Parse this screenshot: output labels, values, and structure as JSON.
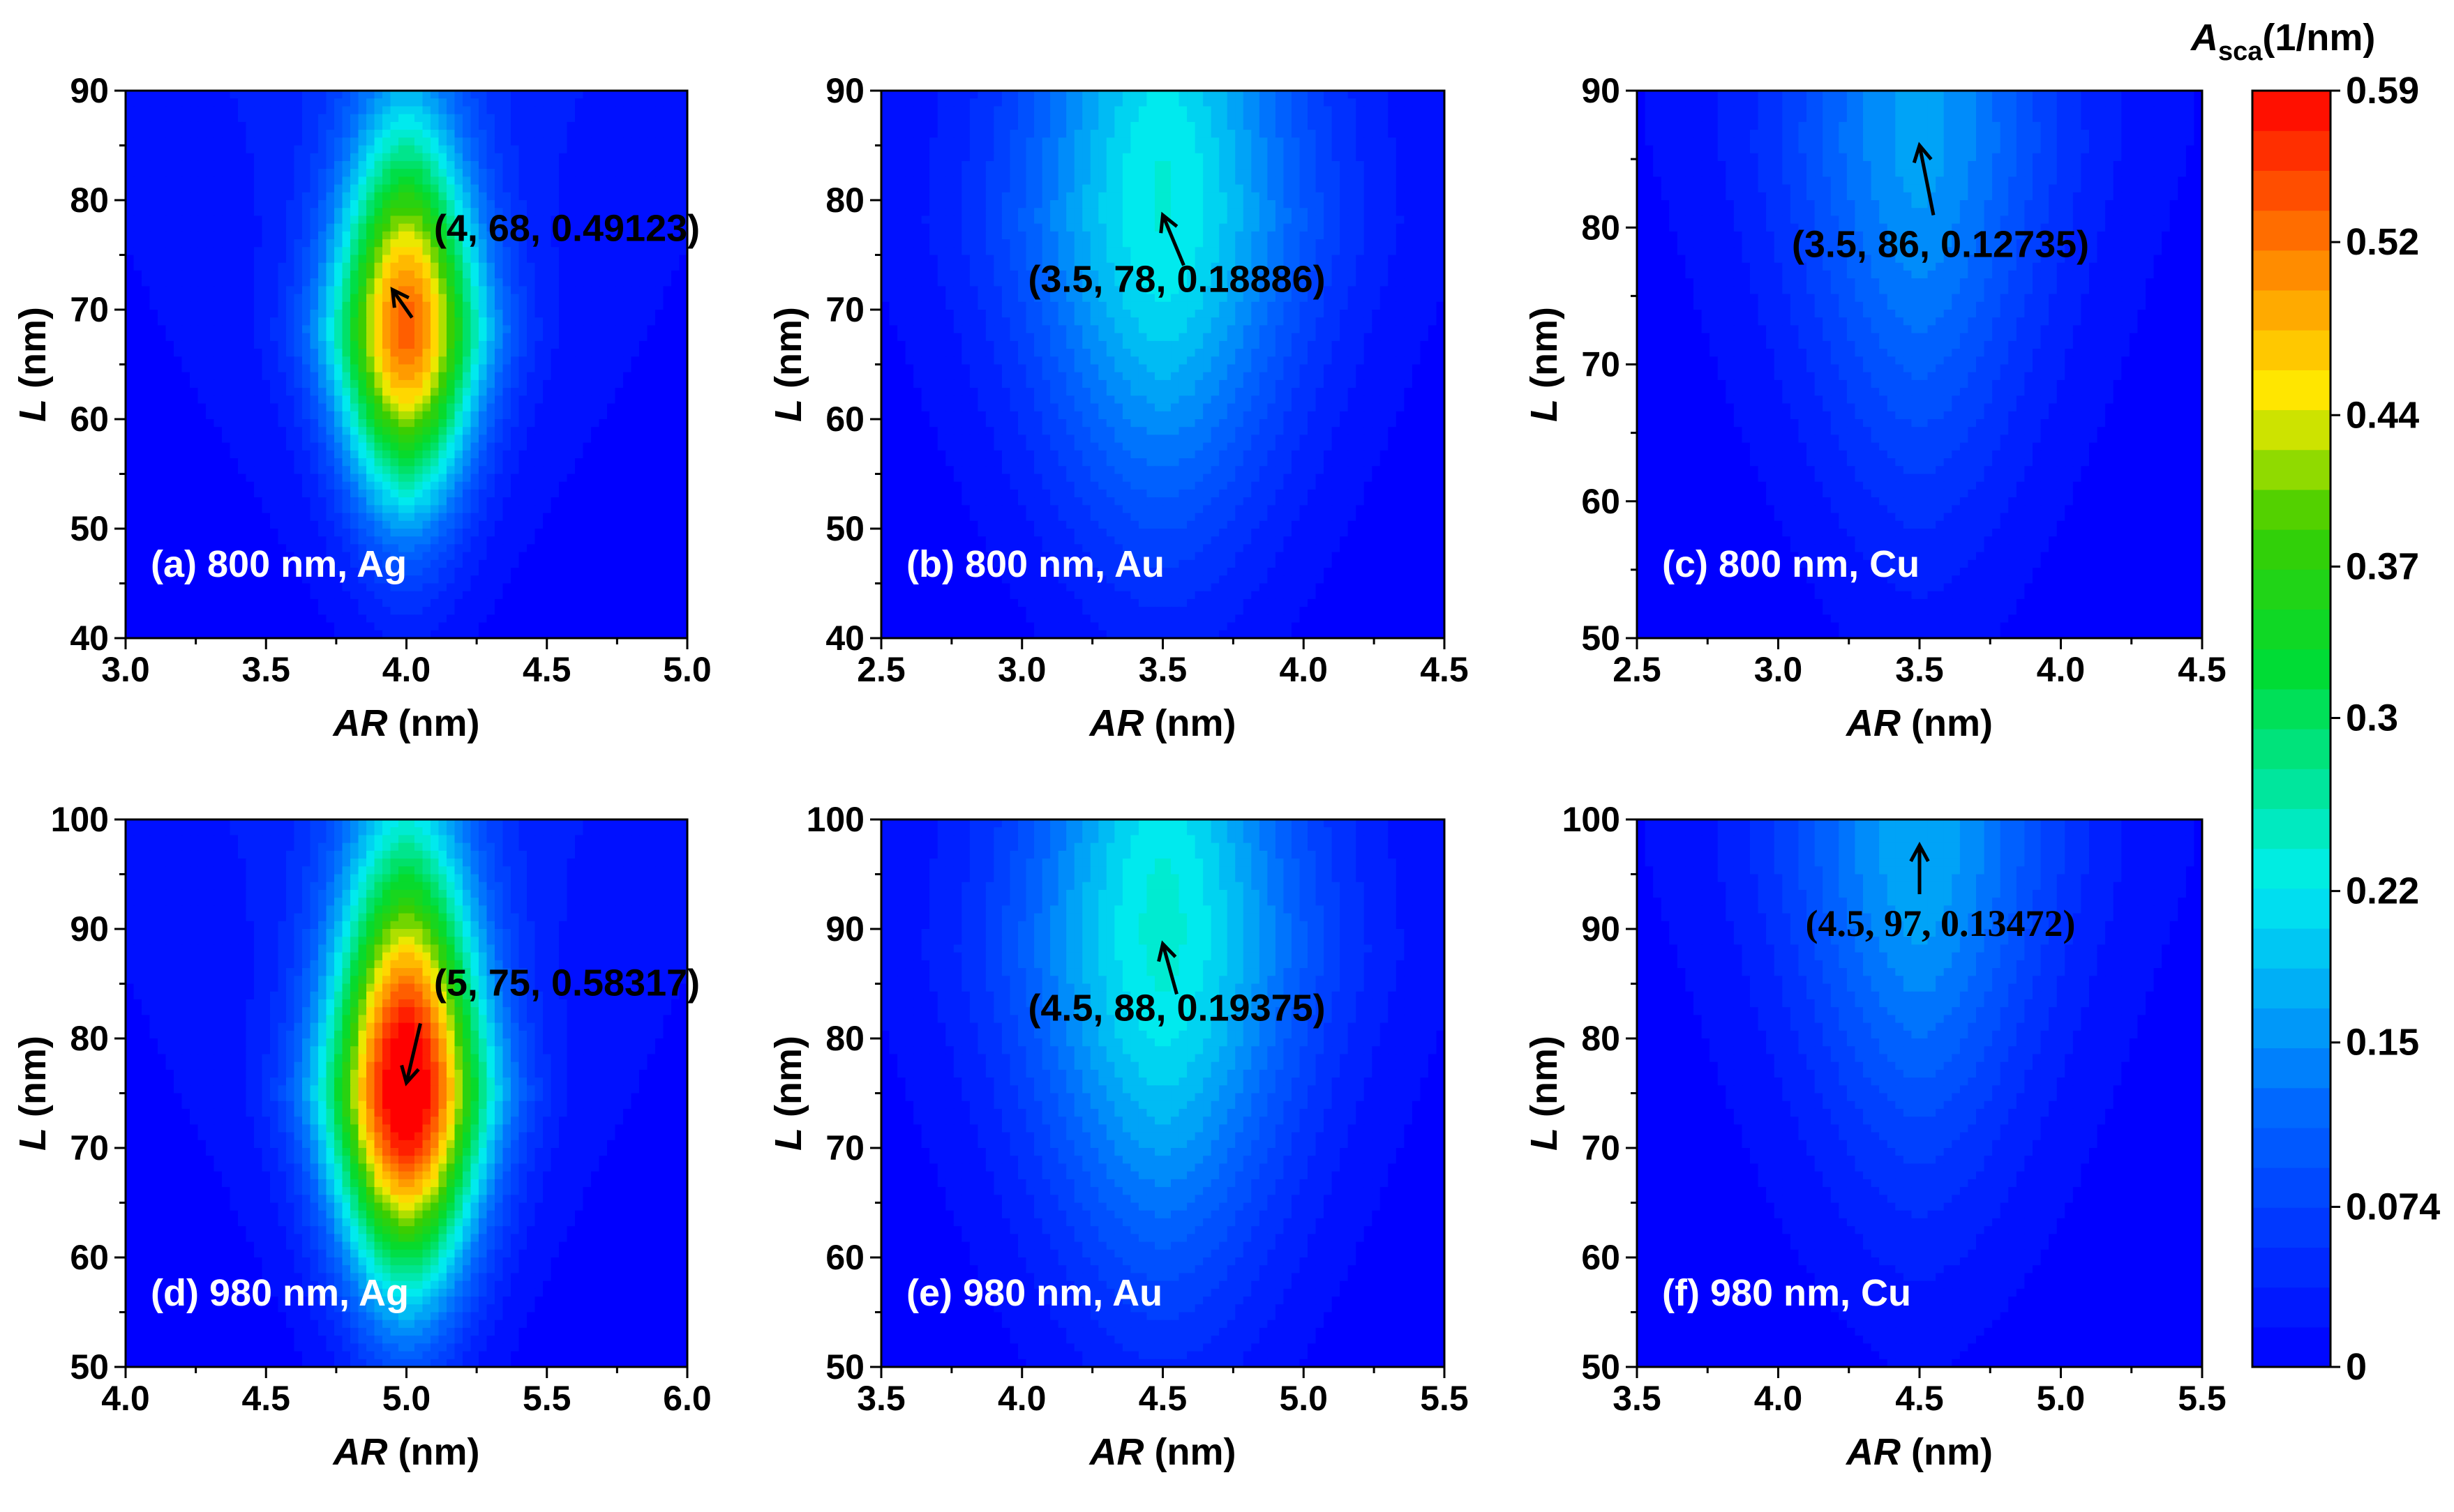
{
  "figure": {
    "colorbar": {
      "title_main": "A",
      "title_sub": "sca",
      "title_unit": "(1/nm)",
      "ticks": [
        "0.59",
        "0.52",
        "0.44",
        "0.37",
        "0.3",
        "0.22",
        "0.15",
        "0.074",
        "0"
      ],
      "tick_values": [
        0.59,
        0.52,
        0.44,
        0.37,
        0.3,
        0.22,
        0.15,
        0.074,
        0
      ],
      "range": [
        0,
        0.59
      ],
      "levels": 32
    }
  },
  "chart_data": [
    {
      "type": "heatmap",
      "panel_label": "(a) 800  nm, Ag",
      "xlabel_italic": "AR",
      "xlabel_unit": " (nm)",
      "ylabel_italic": "L",
      "ylabel_unit": " (nm)",
      "xlim": [
        3.0,
        5.0
      ],
      "ylim": [
        40,
        90
      ],
      "xticks": [
        3.0,
        3.5,
        4.0,
        4.5,
        5.0
      ],
      "xtick_labels": [
        "3.0",
        "3.5",
        "4.0",
        "4.5",
        "5.0"
      ],
      "yticks": [
        40,
        50,
        60,
        70,
        80,
        90
      ],
      "ytick_labels": [
        "40",
        "50",
        "60",
        "70",
        "80",
        "90"
      ],
      "peak": {
        "x": 4,
        "y": 68,
        "z": 0.49123
      },
      "annotation": "(4, 68, 0.49123)",
      "width_x": 0.28,
      "spread_up": 18,
      "spread_down": 16,
      "background": 0.06
    },
    {
      "type": "heatmap",
      "panel_label": "(b) 800 nm, Au",
      "xlabel_italic": "AR",
      "xlabel_unit": " (nm)",
      "ylabel_italic": "L",
      "ylabel_unit": " (nm)",
      "xlim": [
        2.5,
        4.5
      ],
      "ylim": [
        40,
        90
      ],
      "xticks": [
        2.5,
        3.0,
        3.5,
        4.0,
        4.5
      ],
      "xtick_labels": [
        "2.5",
        "3.0",
        "3.5",
        "4.0",
        "4.5"
      ],
      "yticks": [
        40,
        50,
        60,
        70,
        80,
        90
      ],
      "ytick_labels": [
        "40",
        "50",
        "60",
        "70",
        "80",
        "90"
      ],
      "peak": {
        "x": 3.5,
        "y": 78,
        "z": 0.18886
      },
      "annotation": "(3.5, 78, 0.18886)",
      "width_x": 0.55,
      "spread_up": 30,
      "spread_down": 28,
      "background": 0.05
    },
    {
      "type": "heatmap",
      "panel_label": "(c) 800 nm, Cu",
      "xlabel_italic": "AR",
      "xlabel_unit": " (nm)",
      "ylabel_italic": "L",
      "ylabel_unit": " (nm)",
      "xlim": [
        2.5,
        4.5
      ],
      "ylim": [
        50,
        90
      ],
      "xticks": [
        2.5,
        3.0,
        3.5,
        4.0,
        4.5
      ],
      "xtick_labels": [
        "2.5",
        "3.0",
        "3.5",
        "4.0",
        "4.5"
      ],
      "yticks": [
        50,
        60,
        70,
        80,
        90
      ],
      "ytick_labels": [
        "50",
        "60",
        "70",
        "80",
        "90"
      ],
      "peak": {
        "x": 3.5,
        "y": 86,
        "z": 0.12735
      },
      "annotation": "(3.5, 86, 0.12735)",
      "width_x": 0.5,
      "spread_up": 25,
      "spread_down": 25,
      "background": 0.04
    },
    {
      "type": "heatmap",
      "panel_label": "(d) 980 nm, Ag",
      "xlabel_italic": "AR",
      "xlabel_unit": " (nm)",
      "ylabel_italic": "L",
      "ylabel_unit": " (nm)",
      "xlim": [
        4.0,
        6.0
      ],
      "ylim": [
        50,
        100
      ],
      "xticks": [
        4.0,
        4.5,
        5.0,
        5.5,
        6.0
      ],
      "xtick_labels": [
        "4.0",
        "4.5",
        "5.0",
        "5.5",
        "6.0"
      ],
      "yticks": [
        50,
        60,
        70,
        80,
        90,
        100
      ],
      "ytick_labels": [
        "50",
        "60",
        "70",
        "80",
        "90",
        "100"
      ],
      "peak": {
        "x": 5,
        "y": 75,
        "z": 0.58317
      },
      "annotation": "(5, 75, 0.58317)",
      "width_x": 0.3,
      "spread_up": 22,
      "spread_down": 18,
      "background": 0.06
    },
    {
      "type": "heatmap",
      "panel_label": "(e) 980 nm, Au",
      "xlabel_italic": "AR",
      "xlabel_unit": " (nm)",
      "ylabel_italic": "L",
      "ylabel_unit": " (nm)",
      "xlim": [
        3.5,
        5.5
      ],
      "ylim": [
        50,
        100
      ],
      "xticks": [
        3.5,
        4.0,
        4.5,
        5.0,
        5.5
      ],
      "xtick_labels": [
        "3.5",
        "4.0",
        "4.5",
        "5.0",
        "5.5"
      ],
      "yticks": [
        50,
        60,
        70,
        80,
        90,
        100
      ],
      "ytick_labels": [
        "50",
        "60",
        "70",
        "80",
        "90",
        "100"
      ],
      "peak": {
        "x": 4.5,
        "y": 88,
        "z": 0.19375
      },
      "annotation": "(4.5, 88, 0.19375)",
      "width_x": 0.55,
      "spread_up": 30,
      "spread_down": 30,
      "background": 0.05
    },
    {
      "type": "heatmap",
      "panel_label": "(f) 980 nm, Cu",
      "xlabel_italic": "AR",
      "xlabel_unit": " (nm)",
      "ylabel_italic": "L",
      "ylabel_unit": " (nm)",
      "xlim": [
        3.5,
        5.5
      ],
      "ylim": [
        50,
        100
      ],
      "xticks": [
        3.5,
        4.0,
        4.5,
        5.0,
        5.5
      ],
      "xtick_labels": [
        "3.5",
        "4.0",
        "4.5",
        "5.0",
        "5.5"
      ],
      "yticks": [
        50,
        60,
        70,
        80,
        90,
        100
      ],
      "ytick_labels": [
        "50",
        "60",
        "70",
        "80",
        "90",
        "100"
      ],
      "peak": {
        "x": 4.5,
        "y": 97,
        "z": 0.13472
      },
      "annotation": "(4.5, 97, 0.13472)",
      "width_x": 0.5,
      "spread_up": 28,
      "spread_down": 28,
      "background": 0.04
    }
  ]
}
